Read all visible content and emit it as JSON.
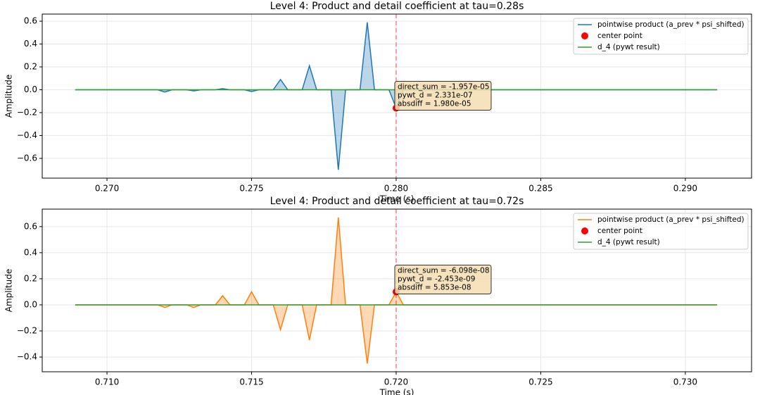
{
  "chart_data": [
    {
      "type": "line",
      "title": "Level 4: Product and detail coefficient at tau=0.28s",
      "xlabel": "Time (s)",
      "ylabel": "Amplitude",
      "xlim": [
        0.26776,
        0.29229
      ],
      "ylim": [
        -0.773,
        0.662
      ],
      "xticks": [
        {
          "value": 0.27,
          "label": "0.270"
        },
        {
          "value": 0.275,
          "label": "0.275"
        },
        {
          "value": 0.28,
          "label": "0.280"
        },
        {
          "value": 0.285,
          "label": "0.285"
        },
        {
          "value": 0.29,
          "label": "0.290"
        }
      ],
      "yticks": [
        0.6,
        0.4,
        0.2,
        {
          "value": 0,
          "label": "0.0"
        },
        {
          "value": -0.2,
          "label": "−0.2"
        },
        {
          "value": -0.4,
          "label": "−0.4"
        },
        {
          "value": -0.6,
          "label": "−0.6"
        }
      ],
      "grid": true,
      "legend": "upper right",
      "vline": {
        "x": 0.28,
        "color": "#ff0000"
      },
      "series": [
        {
          "name": "pointwise product (a_prev * psi_shifted)",
          "style": "line",
          "fill": true,
          "color": "#1f77b4",
          "x": [
            0.2689,
            0.27175,
            0.272,
            0.27225,
            0.27275,
            0.273,
            0.27325,
            0.27375,
            0.274,
            0.27425,
            0.27475,
            0.275,
            0.27525,
            0.27575,
            0.276,
            0.27625,
            0.27675,
            0.277,
            0.27725,
            0.27775,
            0.278,
            0.27825,
            0.27875,
            0.279,
            0.27925,
            0.27975,
            0.28,
            0.28025,
            0.2911
          ],
          "values": [
            0,
            0,
            -0.02,
            0,
            0,
            -0.01,
            0,
            0,
            0.01,
            0,
            0,
            -0.015,
            0,
            0,
            0.09,
            0,
            0,
            0.21,
            0,
            0,
            -0.7,
            0,
            0,
            0.59,
            0,
            0,
            -0.16,
            0,
            0
          ]
        },
        {
          "name": "center point",
          "style": "points",
          "color": "#ff0000",
          "x": [
            0.28
          ],
          "values": [
            -0.16
          ]
        },
        {
          "name": "d_4 (pywt result)",
          "style": "line",
          "color": "#2ca02c",
          "x": [
            0.2689,
            0.2911
          ],
          "values": [
            0,
            0
          ]
        }
      ],
      "annotation": {
        "lines": [
          "direct_sum = -1.957e-05",
          "pywt_d = 2.331e-07",
          "absdiff = 1.980e-05"
        ],
        "color": "#ff0000"
      }
    },
    {
      "type": "line",
      "title": "Level 4: Product and detail coefficient at tau=0.72s",
      "xlabel": "Time (s)",
      "ylabel": "Amplitude",
      "xlim": [
        0.70776,
        0.73229
      ],
      "ylim": [
        -0.513,
        0.734
      ],
      "xticks": [
        {
          "value": 0.71,
          "label": "0.710"
        },
        {
          "value": 0.715,
          "label": "0.715"
        },
        {
          "value": 0.72,
          "label": "0.720"
        },
        {
          "value": 0.725,
          "label": "0.725"
        },
        {
          "value": 0.73,
          "label": "0.730"
        }
      ],
      "yticks": [
        0.6,
        0.4,
        0.2,
        {
          "value": 0,
          "label": "0.0"
        },
        {
          "value": -0.2,
          "label": "−0.2"
        },
        {
          "value": -0.4,
          "label": "−0.4"
        }
      ],
      "grid": true,
      "legend": "upper right",
      "vline": {
        "x": 0.72,
        "color": "#ff0000"
      },
      "series": [
        {
          "name": "pointwise product (a_prev * psi_shifted)",
          "style": "line",
          "fill": true,
          "color": "#ff7f0e",
          "x": [
            0.7089,
            0.71175,
            0.712,
            0.71225,
            0.71275,
            0.713,
            0.71325,
            0.71375,
            0.714,
            0.71425,
            0.71475,
            0.715,
            0.71525,
            0.71575,
            0.716,
            0.71625,
            0.71675,
            0.717,
            0.71725,
            0.71775,
            0.718,
            0.71825,
            0.71875,
            0.719,
            0.71925,
            0.71975,
            0.72,
            0.72025,
            0.7311
          ],
          "values": [
            0,
            0,
            -0.02,
            0,
            0,
            -0.02,
            0,
            0,
            0.07,
            0,
            0,
            0.1,
            0,
            0,
            -0.19,
            0,
            0,
            -0.27,
            0,
            0,
            0.67,
            0,
            0,
            -0.45,
            0,
            0,
            0.1,
            0,
            0
          ]
        },
        {
          "name": "center point",
          "style": "points",
          "color": "#ff0000",
          "x": [
            0.72
          ],
          "values": [
            0.1
          ]
        },
        {
          "name": "d_4 (pywt result)",
          "style": "line",
          "color": "#2ca02c",
          "x": [
            0.7089,
            0.7311
          ],
          "values": [
            0,
            0
          ]
        }
      ],
      "annotation": {
        "lines": [
          "direct_sum = -6.098e-08",
          "pywt_d = -2.453e-09",
          "absdiff = 5.853e-08"
        ],
        "color": "#ff0000"
      }
    }
  ]
}
